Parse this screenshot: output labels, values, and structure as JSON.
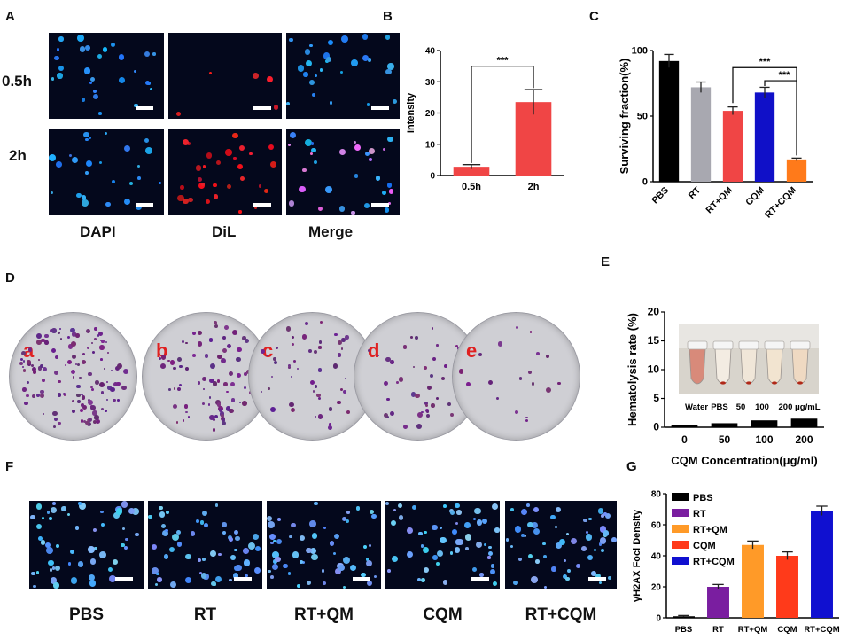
{
  "panels": {
    "A": "A",
    "B": "B",
    "C": "C",
    "D": "D",
    "E": "E",
    "F": "F",
    "G": "G"
  },
  "panel_a": {
    "row_labels": [
      "0.5h",
      "2h"
    ],
    "col_labels": [
      "DAPI",
      "DiL",
      "Merge"
    ]
  },
  "panel_d": {
    "dish_labels": [
      "a",
      "b",
      "c",
      "d",
      "e"
    ]
  },
  "panel_e": {
    "photo_labels": [
      "Water",
      "PBS",
      "50",
      "100",
      "200 μg/mL"
    ]
  },
  "panel_f": {
    "labels": [
      "PBS",
      "RT",
      "RT+QM",
      "CQM",
      "RT+CQM"
    ]
  },
  "colors": {
    "red": "#f04545",
    "black": "#000000",
    "gray": "#a8a8b0",
    "blue": "#1010c8",
    "orange": "#ff7a1a",
    "purple": "#7a1ea0",
    "g_orange": "#ff9a28",
    "g_red": "#ff3a1a",
    "g_blue": "#1010d0"
  },
  "chart_data": [
    {
      "id": "B",
      "type": "bar",
      "categories": [
        "0.5h",
        "2h"
      ],
      "values": [
        2.8,
        23.5
      ],
      "errors": [
        0.7,
        4.0
      ],
      "ylabel": "Intensity",
      "ylim": [
        0,
        40
      ],
      "yticks": [
        0,
        10,
        20,
        30,
        40
      ],
      "annotations": [
        "***"
      ]
    },
    {
      "id": "C",
      "type": "bar",
      "categories": [
        "PBS",
        "RT",
        "RT+QM",
        "CQM",
        "RT+CQM"
      ],
      "values": [
        92,
        72,
        54,
        68,
        17
      ],
      "errors": [
        5,
        4,
        3,
        4,
        1
      ],
      "ylabel": "Surviving fraction(%)",
      "ylim": [
        0,
        100
      ],
      "yticks": [
        0,
        50,
        100
      ],
      "annotations": [
        "***",
        "***"
      ]
    },
    {
      "id": "E",
      "type": "bar",
      "categories": [
        "0",
        "50",
        "100",
        "200"
      ],
      "values": [
        0.4,
        0.7,
        1.2,
        1.5
      ],
      "xlabel": "CQM Concentration(μg/ml)",
      "ylabel": "Hematolysis rate (%)",
      "ylim": [
        0,
        20
      ],
      "yticks": [
        0,
        5,
        10,
        15,
        20
      ]
    },
    {
      "id": "G",
      "type": "bar",
      "categories": [
        "PBS",
        "RT",
        "RT+QM",
        "CQM",
        "RT+CQM"
      ],
      "values": [
        1,
        20,
        47,
        40,
        69
      ],
      "errors": [
        0.5,
        1.5,
        2.5,
        2.5,
        3
      ],
      "ylabel": "γH2AX Foci Density",
      "ylim": [
        0,
        80
      ],
      "yticks": [
        0,
        20,
        40,
        60,
        80
      ],
      "legend": [
        "PBS",
        "RT",
        "RT+QM",
        "CQM",
        "RT+CQM"
      ]
    }
  ]
}
